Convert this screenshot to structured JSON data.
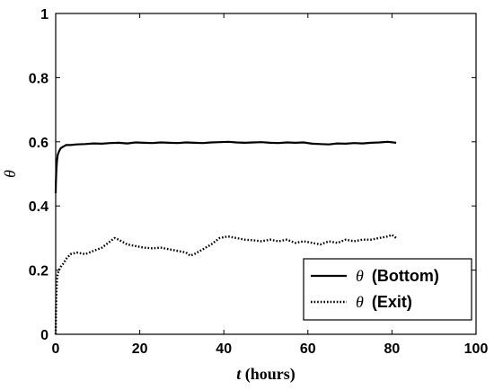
{
  "chart_data": {
    "type": "line",
    "title": "",
    "xlabel": {
      "var": "t",
      "unit": " (hours)"
    },
    "ylabel": "θ",
    "xlim": [
      0,
      100
    ],
    "ylim": [
      0,
      1
    ],
    "x_ticks": [
      0,
      20,
      40,
      60,
      80,
      100
    ],
    "y_ticks": [
      0,
      0.2,
      0.4,
      0.6,
      0.8,
      1
    ],
    "y_tick_labels": [
      "0",
      "0.2",
      "0.4",
      "0.6",
      "0.8",
      "1"
    ],
    "grid": false,
    "legend_position": "bottom-right",
    "series": [
      {
        "name": "Bottom",
        "legend_symbol": "θ",
        "style": "solid",
        "color": "#000000",
        "x": [
          0,
          0.05,
          0.15,
          0.3,
          0.5,
          0.8,
          1.2,
          1.8,
          2.5,
          3.5,
          5,
          7,
          9,
          11,
          13,
          15,
          17,
          19,
          21,
          23,
          25,
          27,
          29,
          31,
          33,
          35,
          37,
          39,
          41,
          43,
          45,
          47,
          49,
          51,
          53,
          55,
          57,
          59,
          61,
          63,
          65,
          67,
          69,
          71,
          73,
          75,
          77,
          79,
          81
        ],
        "y": [
          0.44,
          0.47,
          0.51,
          0.54,
          0.56,
          0.57,
          0.58,
          0.585,
          0.59,
          0.59,
          0.592,
          0.593,
          0.595,
          0.594,
          0.596,
          0.597,
          0.595,
          0.598,
          0.597,
          0.596,
          0.598,
          0.597,
          0.596,
          0.598,
          0.597,
          0.596,
          0.598,
          0.599,
          0.6,
          0.598,
          0.597,
          0.598,
          0.599,
          0.597,
          0.596,
          0.598,
          0.597,
          0.598,
          0.594,
          0.593,
          0.592,
          0.595,
          0.594,
          0.596,
          0.595,
          0.597,
          0.598,
          0.6,
          0.597
        ]
      },
      {
        "name": "Exit",
        "legend_symbol": "θ",
        "style": "dotted",
        "color": "#000000",
        "x": [
          0,
          0.05,
          0.15,
          0.3,
          0.5,
          0.8,
          1.2,
          1.8,
          2.5,
          3.5,
          5,
          7,
          9,
          11,
          13,
          14,
          15,
          17,
          19,
          21,
          23,
          25,
          27,
          29,
          31,
          32,
          33,
          35,
          37,
          39,
          41,
          43,
          45,
          47,
          49,
          51,
          53,
          55,
          57,
          59,
          61,
          63,
          65,
          67,
          69,
          71,
          73,
          75,
          77,
          79,
          80,
          81
        ],
        "y": [
          0.0,
          0.05,
          0.12,
          0.17,
          0.19,
          0.2,
          0.21,
          0.22,
          0.235,
          0.25,
          0.255,
          0.25,
          0.26,
          0.27,
          0.29,
          0.3,
          0.295,
          0.28,
          0.275,
          0.27,
          0.268,
          0.27,
          0.265,
          0.26,
          0.255,
          0.245,
          0.25,
          0.265,
          0.28,
          0.3,
          0.305,
          0.3,
          0.295,
          0.293,
          0.29,
          0.295,
          0.29,
          0.295,
          0.285,
          0.29,
          0.285,
          0.28,
          0.29,
          0.285,
          0.295,
          0.29,
          0.295,
          0.295,
          0.3,
          0.305,
          0.31,
          0.3
        ]
      }
    ]
  }
}
